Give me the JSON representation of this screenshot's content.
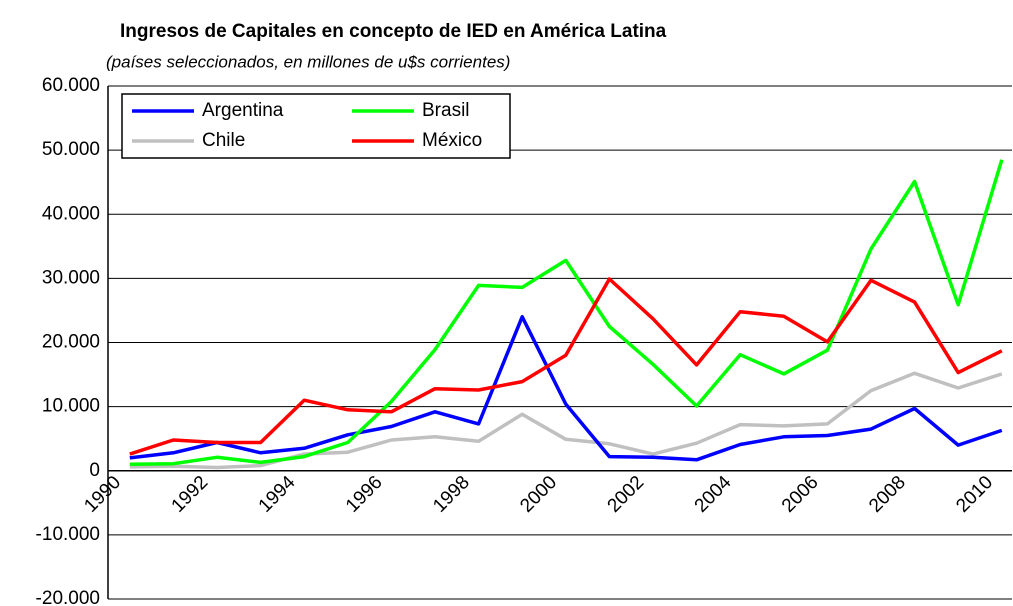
{
  "chart_data": {
    "type": "line",
    "title": "Ingresos de Capitales en concepto de IED en América Latina",
    "subtitle": "(países seleccionados, en millones de u$s corrientes)",
    "categories": [
      "1990",
      null,
      "1992",
      null,
      "1994",
      null,
      "1996",
      null,
      "1998",
      null,
      "2000",
      null,
      "2002",
      null,
      "2004",
      null,
      "2006",
      null,
      "2008",
      null,
      "2010"
    ],
    "series": [
      {
        "name": "Argentina",
        "color": "#0000ff",
        "values": [
          2000,
          2800,
          4400,
          2800,
          3500,
          5600,
          6900,
          9200,
          7300,
          24000,
          10400,
          2200,
          2100,
          1700,
          4100,
          5300,
          5500,
          6500,
          9700,
          4000,
          6300
        ]
      },
      {
        "name": "Brasil",
        "color": "#00ff00",
        "values": [
          1000,
          1100,
          2100,
          1300,
          2200,
          4400,
          10800,
          18900,
          28900,
          28600,
          32800,
          22500,
          16600,
          10100,
          18100,
          15100,
          18800,
          34600,
          45100,
          25900,
          48500
        ]
      },
      {
        "name": "Chile",
        "color": "#c0c0c0",
        "values": [
          600,
          700,
          500,
          800,
          2600,
          2900,
          4800,
          5300,
          4600,
          8800,
          4900,
          4200,
          2600,
          4300,
          7200,
          7000,
          7300,
          12500,
          15200,
          12900,
          15100
        ]
      },
      {
        "name": "México",
        "color": "#ff0000",
        "values": [
          2600,
          4800,
          4400,
          4400,
          11000,
          9500,
          9200,
          12800,
          12600,
          13900,
          18000,
          29900,
          23700,
          16500,
          24800,
          24100,
          20100,
          29700,
          26300,
          15300,
          18700
        ]
      }
    ],
    "ylim": [
      -20000,
      60000
    ],
    "yticks": [
      {
        "value": -20000,
        "label": "-20.000"
      },
      {
        "value": -10000,
        "label": "-10.000"
      },
      0,
      {
        "value": 10000,
        "label": "10.000"
      },
      {
        "value": 20000,
        "label": "20.000"
      },
      {
        "value": 30000,
        "label": "30.000"
      },
      {
        "value": 40000,
        "label": "40.000"
      },
      {
        "value": 50000,
        "label": "50.000"
      },
      {
        "value": 60000,
        "label": "60.000"
      }
    ],
    "grid": true
  }
}
